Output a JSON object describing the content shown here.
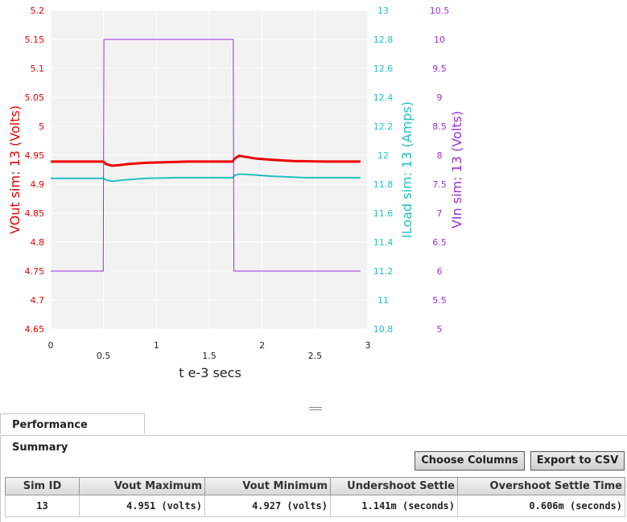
{
  "chart_data": {
    "type": "line",
    "xlabel": "t e-3 secs",
    "xlim": [
      0,
      3
    ],
    "x_ticks": [
      "0",
      "0.5",
      "1",
      "1.5",
      "2",
      "2.5",
      "3"
    ],
    "axes": {
      "left": {
        "label": "VOut sim:  13 (Volts)",
        "color": "#ee0000",
        "range": [
          4.65,
          5.2
        ],
        "ticks": [
          "5.2",
          "5.15",
          "5.1",
          "5.05",
          "5",
          "4.95",
          "4.9",
          "4.85",
          "4.8",
          "4.75",
          "4.7",
          "4.65"
        ]
      },
      "right1": {
        "label": "ILoad sim:  13 (Amps)",
        "color": "#22c0c0",
        "range": [
          10.8,
          13
        ],
        "ticks": [
          "13",
          "12.8",
          "12.6",
          "12.4",
          "12.2",
          "12",
          "11.8",
          "11.6",
          "11.4",
          "11.2",
          "11",
          "10.8"
        ]
      },
      "right2": {
        "label": "VIn sim:  13 (Volts)",
        "color": "#9b30d9",
        "range": [
          5,
          10.5
        ],
        "ticks": [
          "10.5",
          "10",
          "9.5",
          "9",
          "8.5",
          "8",
          "7.5",
          "7",
          "6.5",
          "6",
          "5.5",
          "5"
        ]
      }
    },
    "series": [
      {
        "axis": "left",
        "color": "#ee0000",
        "x": [
          0,
          0.5,
          0.52,
          0.58,
          0.65,
          0.75,
          0.9,
          1.1,
          1.3,
          1.5,
          1.72,
          1.74,
          1.78,
          1.85,
          1.95,
          2.1,
          2.3,
          2.6,
          2.93
        ],
        "y": [
          4.939,
          4.939,
          4.935,
          4.932,
          4.933,
          4.935,
          4.937,
          4.938,
          4.939,
          4.939,
          4.939,
          4.944,
          4.949,
          4.947,
          4.944,
          4.942,
          4.94,
          4.939,
          4.939
        ]
      },
      {
        "axis": "right1",
        "color": "#22c0c0",
        "x": [
          0,
          0.5,
          0.52,
          0.58,
          0.7,
          0.9,
          1.2,
          1.5,
          1.72,
          1.74,
          1.78,
          1.9,
          2.1,
          2.4,
          2.93
        ],
        "y": [
          11.84,
          11.84,
          11.83,
          11.82,
          11.83,
          11.84,
          11.845,
          11.845,
          11.845,
          11.86,
          11.87,
          11.865,
          11.855,
          11.845,
          11.845
        ]
      },
      {
        "axis": "right2",
        "color": "#9b30d9",
        "x": [
          0,
          0.497,
          0.503,
          1.727,
          1.733,
          2.93
        ],
        "y": [
          6.0,
          6.0,
          10.0,
          10.0,
          6.0,
          6.0
        ]
      }
    ],
    "grid": true
  },
  "panel": {
    "tab_label": "Performance Summary",
    "choose_columns_label": "Choose Columns",
    "export_label": "Export to CSV"
  },
  "table": {
    "columns": [
      "Sim ID",
      "Vout Maximum",
      "Vout Minimum",
      "Undershoot Settle",
      "Overshoot Settle Time"
    ],
    "rows": [
      [
        "13",
        "4.951 (volts)",
        "4.927 (volts)",
        "1.141m (seconds)",
        "0.606m (seconds)"
      ]
    ]
  }
}
